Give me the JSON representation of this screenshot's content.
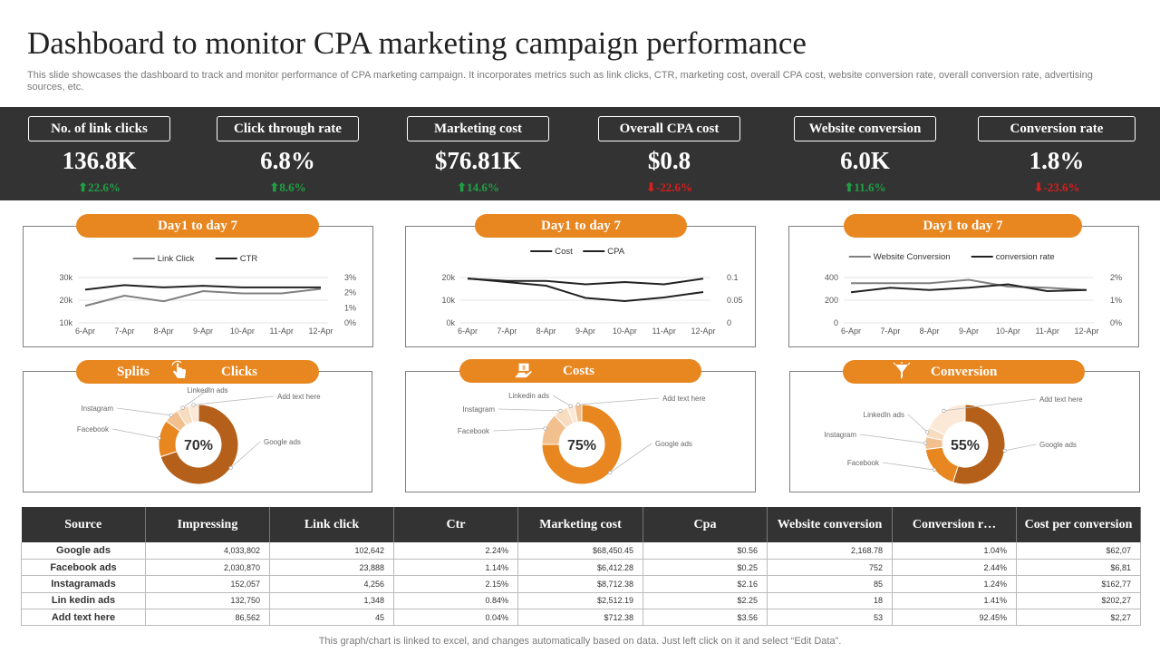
{
  "title": "Dashboard to monitor CPA marketing campaign performance",
  "subtitle": "This slide showcases the dashboard to track and monitor performance of CPA marketing campaign. It incorporates metrics such as link clicks, CTR, marketing cost, overall CPA cost, website conversion rate, overall conversion rate, advertising sources, etc.",
  "colors": {
    "accent": "#e8861f",
    "dark": "#333333",
    "up": "#1fa045",
    "down": "#d61f1f",
    "donut_dark": "#b5601a",
    "donut_mid": "#e8861f",
    "donut_light": "#f2c08f",
    "donut_pale": "#f8dcc0"
  },
  "kpis": [
    {
      "label": "No. of link clicks",
      "value": "136.8K",
      "delta": "22.6%",
      "direction": "up"
    },
    {
      "label": "Click through rate",
      "value": "6.8%",
      "delta": "8.6%",
      "direction": "up"
    },
    {
      "label": "Marketing cost",
      "value": "$76.81K",
      "delta": "14.6%",
      "direction": "up"
    },
    {
      "label": "Overall CPA cost",
      "value": "$0.8",
      "delta": "-22.6%",
      "direction": "down"
    },
    {
      "label": "Website conversion",
      "value": "6.0K",
      "delta": "11.6%",
      "direction": "up"
    },
    {
      "label": "Conversion rate",
      "value": "1.8%",
      "delta": "-23.6%",
      "direction": "down"
    }
  ],
  "line_charts": [
    {
      "pill": "Day1 to day 7",
      "type": "line",
      "categories": [
        "6-Apr",
        "7-Apr",
        "8-Apr",
        "9-Apr",
        "10-Apr",
        "11-Apr",
        "12-Apr"
      ],
      "series": [
        {
          "name": "Link Click",
          "axis": "left",
          "color": "#808080",
          "values": [
            17500,
            22000,
            19500,
            24000,
            23000,
            23000,
            25000
          ]
        },
        {
          "name": "CTR",
          "axis": "right",
          "color": "#222222",
          "values": [
            2.2,
            2.5,
            2.35,
            2.45,
            2.35,
            2.35,
            2.35
          ]
        }
      ],
      "left_axis": {
        "min": 10000,
        "max": 30000,
        "ticks": [
          10000,
          20000,
          30000
        ],
        "tick_labels": [
          "10k",
          "20k",
          "30k"
        ]
      },
      "right_axis": {
        "min": 0,
        "max": 3,
        "ticks": [
          0,
          1,
          2,
          3
        ],
        "tick_labels": [
          "0%",
          "1%",
          "2%",
          "3%"
        ]
      }
    },
    {
      "pill": "Day1 to day 7",
      "type": "line",
      "categories": [
        "6-Apr",
        "7-Apr",
        "8-Apr",
        "9-Apr",
        "10-Apr",
        "11-Apr",
        "12-Apr"
      ],
      "series": [
        {
          "name": "Cost",
          "axis": "left",
          "color": "#222222",
          "values": [
            19500,
            18500,
            18500,
            17000,
            18000,
            17000,
            19500
          ]
        },
        {
          "name": "CPA",
          "axis": "right",
          "color": "#222222",
          "values": [
            0.098,
            0.09,
            0.082,
            0.055,
            0.048,
            0.056,
            0.068
          ]
        }
      ],
      "left_axis": {
        "min": 0,
        "max": 20000,
        "ticks": [
          0,
          10000,
          20000
        ],
        "tick_labels": [
          "0k",
          "10k",
          "20k"
        ]
      },
      "right_axis": {
        "min": 0,
        "max": 0.1,
        "ticks": [
          0,
          0.05,
          0.1
        ],
        "tick_labels": [
          "0",
          "0.05",
          "0.1"
        ]
      }
    },
    {
      "pill": "Day1 to day 7",
      "type": "line",
      "categories": [
        "6-Apr",
        "7-Apr",
        "8-Apr",
        "9-Apr",
        "10-Apr",
        "11-Apr",
        "12-Apr"
      ],
      "series": [
        {
          "name": "Website Conversion",
          "axis": "left",
          "color": "#808080",
          "values": [
            350,
            350,
            350,
            380,
            320,
            310,
            290
          ]
        },
        {
          "name": "conversion rate",
          "axis": "right",
          "color": "#222222",
          "values": [
            1.35,
            1.55,
            1.45,
            1.55,
            1.7,
            1.4,
            1.45
          ]
        }
      ],
      "left_axis": {
        "min": 0,
        "max": 400,
        "ticks": [
          0,
          200,
          400
        ],
        "tick_labels": [
          "0",
          "200",
          "400"
        ]
      },
      "right_axis": {
        "min": 0,
        "max": 2,
        "ticks": [
          0,
          1,
          2
        ],
        "tick_labels": [
          "0%",
          "1%",
          "2%"
        ]
      }
    }
  ],
  "donut_charts": [
    {
      "pill_left": "Splits",
      "pill_right": "Clicks",
      "icon": "pointer-hand-icon",
      "type": "pie",
      "center_label": "70%",
      "slices": [
        {
          "name": "Google ads",
          "value": 70
        },
        {
          "name": "Facebook",
          "value": 15
        },
        {
          "name": "Instagram",
          "value": 6
        },
        {
          "name": "LinkedIn ads",
          "value": 5
        },
        {
          "name": "Add text here",
          "value": 4
        }
      ]
    },
    {
      "pill_left": "",
      "pill_right": "Costs",
      "icon": "money-hand-icon",
      "type": "pie",
      "center_label": "75%",
      "slices": [
        {
          "name": "Google ads",
          "value": 75
        },
        {
          "name": "Facebook",
          "value": 13
        },
        {
          "name": "Instagram",
          "value": 6
        },
        {
          "name": "Linkedin ads",
          "value": 3
        },
        {
          "name": "Add text here",
          "value": 3
        }
      ]
    },
    {
      "pill_left": "",
      "pill_right": "Conversion",
      "icon": "funnel-icon",
      "type": "pie",
      "center_label": "55%",
      "slices": [
        {
          "name": "Google ads",
          "value": 55
        },
        {
          "name": "Facebook",
          "value": 18
        },
        {
          "name": "Instagram",
          "value": 5
        },
        {
          "name": "LinkedIn ads",
          "value": 4
        },
        {
          "name": "Add text here",
          "value": 18
        }
      ]
    }
  ],
  "table": {
    "headers": [
      "Source",
      "Impressing",
      "Link click",
      "Ctr",
      "Marketing cost",
      "Cpa",
      "Website conversion",
      "Conversion r…",
      "Cost per conversion"
    ],
    "rows": [
      [
        "Google ads",
        "4,033,802",
        "102,642",
        "2.24%",
        "$68,450.45",
        "$0.56",
        "2,168.78",
        "1.04%",
        "$62,07"
      ],
      [
        "Facebook ads",
        "2,030,870",
        "23,888",
        "1.14%",
        "$6,412.28",
        "$0.25",
        "752",
        "2.44%",
        "$6,81"
      ],
      [
        "Instagramads",
        "152,057",
        "4,256",
        "2.15%",
        "$8,712.38",
        "$2.16",
        "85",
        "1.24%",
        "$162,77"
      ],
      [
        "Lin kedin ads",
        "132,750",
        "1,348",
        "0.84%",
        "$2,512.19",
        "$2.25",
        "18",
        "1.41%",
        "$202,27"
      ],
      [
        "Add text here",
        "86,562",
        "45",
        "0.04%",
        "$712.38",
        "$3.56",
        "53",
        "92.45%",
        "$2,27"
      ]
    ]
  },
  "footer": "This graph/chart is linked to excel,  and changes automatically based on data. Just left click on it and select “Edit Data”."
}
